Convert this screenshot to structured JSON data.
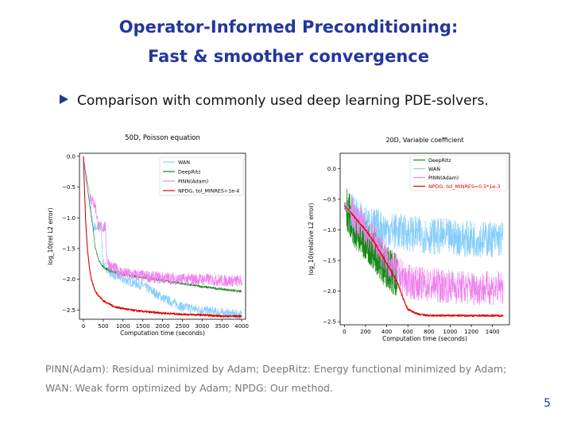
{
  "slide": {
    "title_line1": "Operator-Informed Preconditioning:",
    "title_line2": "Fast & smoother convergence",
    "bullet": "Comparison with commonly used deep learning PDE-solvers.",
    "footnote_line1": "PINN(Adam): Residual minimized by Adam; DeepRitz: Energy functional minimized by Adam;",
    "footnote_line2": "WAN: Weak form optimized by Adam; NPDG: Our method.",
    "page_number": "5"
  },
  "colors": {
    "title": "#23379b",
    "WAN": "#87cefa",
    "DeepRitz": "#138a13",
    "PINN": "#ee82ee",
    "NPDG": "#e00000"
  },
  "chart_data": [
    {
      "type": "line",
      "title": "50D, Poisson equation",
      "xlabel": "Computation time (seconds)",
      "ylabel": "log_10(rel L2 error)",
      "xlim": [
        -100,
        4100
      ],
      "ylim": [
        -2.65,
        0.05
      ],
      "xticks": [
        0,
        500,
        1000,
        1500,
        2000,
        2500,
        3000,
        3500,
        4000
      ],
      "xtick_labels": [
        "0",
        "500",
        "1000",
        "1500",
        "2000",
        "2500",
        "3000",
        "3500",
        "4000"
      ],
      "yticks": [
        0.0,
        -0.5,
        -1.0,
        -1.5,
        -2.0,
        -2.5
      ],
      "ytick_labels": [
        "0.0",
        "−0.5",
        "−1.0",
        "−1.5",
        "−2.0",
        "−2.5"
      ],
      "legend_position": "top-right",
      "series": [
        {
          "name": "WAN",
          "color_key": "WAN",
          "noise": 0.08,
          "x": [
            0,
            80,
            160,
            240,
            300,
            380,
            440,
            500,
            700,
            1000,
            1500,
            2000,
            2500,
            3000,
            3500,
            4000
          ],
          "y": [
            0.0,
            -0.45,
            -0.75,
            -1.15,
            -1.15,
            -1.15,
            -1.15,
            -1.75,
            -1.9,
            -2.0,
            -2.1,
            -2.3,
            -2.45,
            -2.5,
            -2.55,
            -2.58
          ]
        },
        {
          "name": "DeepRitz",
          "color_key": "DeepRitz",
          "noise": 0.02,
          "x": [
            0,
            100,
            180,
            250,
            300,
            400,
            500,
            700,
            1000,
            1500,
            2000,
            2500,
            3000,
            3500,
            4000
          ],
          "y": [
            0.0,
            -0.5,
            -0.9,
            -1.2,
            -1.5,
            -1.7,
            -1.8,
            -1.87,
            -1.92,
            -1.97,
            -2.02,
            -2.07,
            -2.12,
            -2.16,
            -2.2
          ]
        },
        {
          "name": "PINN(Adam)",
          "color_key": "PINN",
          "noise": 0.1,
          "x": [
            0,
            100,
            200,
            300,
            380,
            450,
            550,
            600,
            700,
            1000,
            1500,
            2000,
            2500,
            3000,
            3500,
            4000
          ],
          "y": [
            0.0,
            -0.4,
            -0.7,
            -0.8,
            -1.15,
            -1.15,
            -1.15,
            -1.7,
            -1.8,
            -1.9,
            -1.95,
            -1.98,
            -2.0,
            -2.0,
            -2.02,
            -2.03
          ]
        },
        {
          "name": "NPDG, tol_MINRES=1e-4",
          "color_key": "NPDG",
          "noise": 0.015,
          "x": [
            0,
            30,
            60,
            100,
            150,
            200,
            300,
            500,
            800,
            1200,
            1600,
            2000,
            2500,
            3000,
            3500,
            4000
          ],
          "y": [
            0.0,
            -0.6,
            -1.1,
            -1.5,
            -1.8,
            -2.0,
            -2.2,
            -2.35,
            -2.45,
            -2.5,
            -2.53,
            -2.55,
            -2.57,
            -2.58,
            -2.6,
            -2.6
          ]
        }
      ]
    },
    {
      "type": "line",
      "title": "20D, Variable coefficient",
      "xlabel": "Computation time (seconds)",
      "ylabel": "log_10(relative L2 error)",
      "xlim": [
        -40,
        1560
      ],
      "ylim": [
        -2.55,
        0.25
      ],
      "xticks": [
        0,
        200,
        400,
        600,
        800,
        1000,
        1200,
        1400
      ],
      "xtick_labels": [
        "0",
        "200",
        "400",
        "600",
        "800",
        "1000",
        "1200",
        "1400"
      ],
      "yticks": [
        0.0,
        -0.5,
        -1.0,
        -1.5,
        -2.0,
        -2.5
      ],
      "ytick_labels": [
        "0.0",
        "−0.5",
        "−1.0",
        "−1.5",
        "−2.0",
        "−2.5"
      ],
      "legend_position": "top-right",
      "series": [
        {
          "name": "DeepRitz",
          "color_key": "DeepRitz",
          "noise": 0.35,
          "x": [
            0,
            50,
            100,
            150,
            200,
            250,
            300,
            350,
            400,
            450,
            500
          ],
          "y": [
            -0.6,
            -0.75,
            -0.95,
            -1.05,
            -1.15,
            -1.25,
            -1.35,
            -1.5,
            -1.6,
            -1.7,
            -1.75
          ]
        },
        {
          "name": "WAN",
          "color_key": "WAN",
          "noise": 0.3,
          "x": [
            0,
            100,
            200,
            400,
            600,
            800,
            1000,
            1200,
            1500
          ],
          "y": [
            -0.6,
            -0.75,
            -0.9,
            -1.0,
            -1.05,
            -1.1,
            -1.12,
            -1.15,
            -1.15
          ]
        },
        {
          "name": "PINN(Adam)",
          "color_key": "PINN",
          "noise": 0.28,
          "x": [
            0,
            100,
            200,
            300,
            400,
            500,
            600,
            800,
            1000,
            1200,
            1500
          ],
          "y": [
            -0.6,
            -0.8,
            -1.0,
            -1.2,
            -1.5,
            -1.7,
            -1.85,
            -1.9,
            -1.92,
            -1.95,
            -1.95
          ]
        },
        {
          "name": "NPDG, tol_MINRES=0.5*1e-3",
          "color_key": "NPDG",
          "noise": 0.015,
          "x": [
            0,
            50,
            100,
            200,
            300,
            400,
            500,
            550,
            600,
            700,
            800,
            1000,
            1200,
            1500
          ],
          "y": [
            -0.6,
            -0.7,
            -0.8,
            -1.0,
            -1.25,
            -1.55,
            -1.85,
            -2.1,
            -2.3,
            -2.38,
            -2.4,
            -2.4,
            -2.4,
            -2.4
          ]
        }
      ]
    }
  ]
}
